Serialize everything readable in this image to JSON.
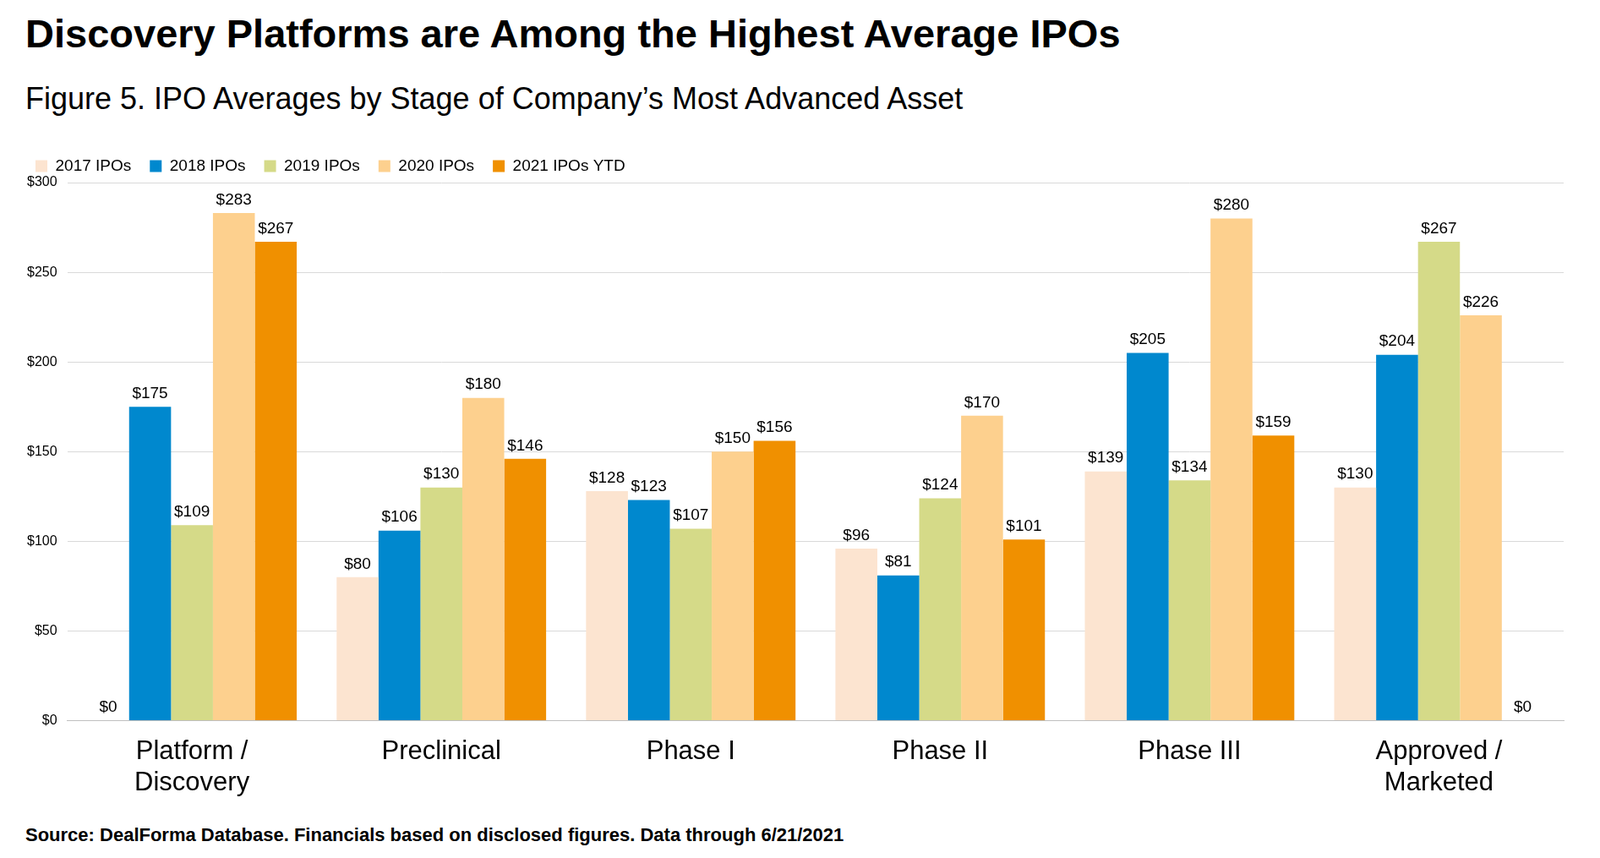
{
  "chart_data": {
    "type": "bar",
    "title": "Discovery Platforms are Among the Highest Average IPOs",
    "subtitle": "Figure 5. IPO Averages by Stage of Company’s Most Advanced Asset",
    "source": "Source: DealForma Database. Financials based on disclosed figures. Data through 6/21/2021",
    "categories": [
      "Platform / Discovery",
      "Preclinical",
      "Phase I",
      "Phase II",
      "Phase III",
      "Approved / Marketed"
    ],
    "series": [
      {
        "name": "2017 IPOs",
        "color": "#fce4d0",
        "values": [
          0,
          80,
          128,
          96,
          139,
          130
        ],
        "value_labels": [
          "$0",
          "$80",
          "$128",
          "$96",
          "$139",
          "$130"
        ]
      },
      {
        "name": "2018 IPOs",
        "color": "#0088ce",
        "values": [
          175,
          106,
          123,
          81,
          205,
          204
        ],
        "value_labels": [
          "$175",
          "$106",
          "$123",
          "$81",
          "$205",
          "$204"
        ]
      },
      {
        "name": "2019 IPOs",
        "color": "#d5da88",
        "values": [
          109,
          130,
          107,
          124,
          134,
          267
        ],
        "value_labels": [
          "$109",
          "$130",
          "$107",
          "$124",
          "$134",
          "$267"
        ]
      },
      {
        "name": "2020 IPOs",
        "color": "#fdd08e",
        "values": [
          283,
          180,
          150,
          170,
          280,
          226
        ],
        "value_labels": [
          "$283",
          "$180",
          "$150",
          "$170",
          "$280",
          "$226"
        ]
      },
      {
        "name": "2021 IPOs YTD",
        "color": "#f09000",
        "values": [
          267,
          146,
          156,
          101,
          159,
          0
        ],
        "value_labels": [
          "$267",
          "$146",
          "$156",
          "$101",
          "$159",
          "$0"
        ]
      }
    ],
    "ylim": [
      0,
      300
    ],
    "yticks": [
      {
        "value": 0,
        "label": "$0"
      },
      {
        "value": 50,
        "label": "$50"
      },
      {
        "value": 100,
        "label": "$100"
      },
      {
        "value": 150,
        "label": "$150"
      },
      {
        "value": 200,
        "label": "$200"
      },
      {
        "value": 250,
        "label": "$250"
      },
      {
        "value": 300,
        "label": "$300"
      }
    ],
    "grid": true,
    "legend": "top-left",
    "data_labels": true
  }
}
